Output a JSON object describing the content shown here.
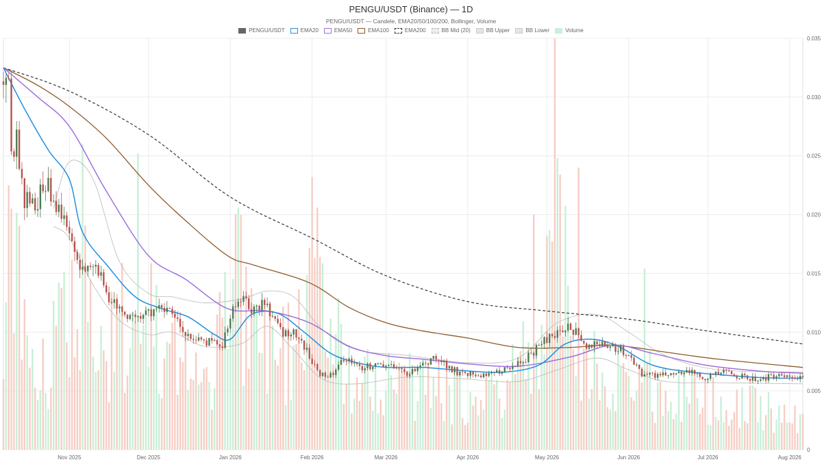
{
  "title": "PENGU/USDT (Binance) — 1D",
  "subtitle": "PENGU/USDT — Candele, EMA20/50/100/200, Bollinger, Volume",
  "legend": [
    {
      "label": "PENGU/USDT",
      "color": "#666666",
      "fill": "#666666",
      "style": "solid"
    },
    {
      "label": "EMA20",
      "color": "#1f8fe0",
      "fill": "#ffffff",
      "style": "solid"
    },
    {
      "label": "EMA50",
      "color": "#a070e0",
      "fill": "#ffffff",
      "style": "solid"
    },
    {
      "label": "EMA100",
      "color": "#8b5a2b",
      "fill": "#ffffff",
      "style": "solid"
    },
    {
      "label": "EMA200",
      "color": "#333333",
      "fill": "#ffffff",
      "style": "dashed"
    },
    {
      "label": "BB Mid (20)",
      "color": "#bbbbbb",
      "fill": "#eeeeee",
      "style": "dashed"
    },
    {
      "label": "BB Upper",
      "color": "#cccccc",
      "fill": "#e4e4e4",
      "style": "solid"
    },
    {
      "label": "BB Lower",
      "color": "#cccccc",
      "fill": "#e4e4e4",
      "style": "solid"
    },
    {
      "label": "Volume",
      "color": "#c8f0d8",
      "fill": "#c8f0d8",
      "style": "solid"
    }
  ],
  "colors": {
    "up": "#4a7a52",
    "down": "#b5534a",
    "vol_up": "#c8efd6",
    "vol_down": "#f6cdc4",
    "ema20": "#1f8fe0",
    "ema50": "#a070e0",
    "ema100": "#8b5a2b",
    "ema200": "#333333",
    "bb": "#b8b8b8",
    "grid": "#ececec"
  },
  "chart_data": {
    "type": "candlestick",
    "symbol": "PENGU/USDT",
    "exchange": "Binance",
    "interval": "1D",
    "x_range": [
      "2025-10-07",
      "2026-08-06"
    ],
    "ylim": [
      0,
      0.035
    ],
    "y_ticks": [
      {
        "value": 0,
        "label": "0"
      },
      {
        "value": 0.005,
        "label": "0.005"
      },
      {
        "value": 0.01,
        "label": "0.010"
      },
      {
        "value": 0.015,
        "label": "0.015"
      },
      {
        "value": 0.02,
        "label": "0.020"
      },
      {
        "value": 0.025,
        "label": "0.025"
      },
      {
        "value": 0.03,
        "label": "0.030"
      },
      {
        "value": 0.035,
        "label": "0.035"
      }
    ],
    "x_ticks": [
      {
        "date": "2025-11-01",
        "label": "Nov 2025"
      },
      {
        "date": "2025-12-01",
        "label": "Dec 2025"
      },
      {
        "date": "2026-01-01",
        "label": "Jan 2026"
      },
      {
        "date": "2026-02-01",
        "label": "Feb 2026"
      },
      {
        "date": "2026-03-01",
        "label": "Mar 2026"
      },
      {
        "date": "2026-04-01",
        "label": "Apr 2026"
      },
      {
        "date": "2026-05-01",
        "label": "May 2026"
      },
      {
        "date": "2026-06-01",
        "label": "Jun 2026"
      },
      {
        "date": "2026-07-01",
        "label": "Jul 2026"
      },
      {
        "date": "2026-08-01",
        "label": "Aug 2026"
      }
    ],
    "close_path": [
      [
        "2025-10-07",
        0.0325
      ],
      [
        "2025-10-09",
        0.0315
      ],
      [
        "2025-10-10",
        0.0245
      ],
      [
        "2025-10-12",
        0.0265
      ],
      [
        "2025-10-15",
        0.0215
      ],
      [
        "2025-10-19",
        0.021
      ],
      [
        "2025-10-24",
        0.0225
      ],
      [
        "2025-10-27",
        0.0205
      ],
      [
        "2025-11-01",
        0.0185
      ],
      [
        "2025-11-05",
        0.0155
      ],
      [
        "2025-11-10",
        0.016
      ],
      [
        "2025-11-16",
        0.013
      ],
      [
        "2025-11-22",
        0.011
      ],
      [
        "2025-11-28",
        0.0115
      ],
      [
        "2025-12-04",
        0.012
      ],
      [
        "2025-12-10",
        0.0115
      ],
      [
        "2025-12-16",
        0.0095
      ],
      [
        "2025-12-22",
        0.0092
      ],
      [
        "2025-12-29",
        0.009
      ],
      [
        "2026-01-02",
        0.012
      ],
      [
        "2026-01-05",
        0.013
      ],
      [
        "2026-01-09",
        0.0118
      ],
      [
        "2026-01-14",
        0.0125
      ],
      [
        "2026-01-20",
        0.01
      ],
      [
        "2026-01-26",
        0.0098
      ],
      [
        "2026-01-31",
        0.008
      ],
      [
        "2026-02-03",
        0.0065
      ],
      [
        "2026-02-09",
        0.0062
      ],
      [
        "2026-02-12",
        0.0078
      ],
      [
        "2026-02-20",
        0.007
      ],
      [
        "2026-03-01",
        0.0072
      ],
      [
        "2026-03-10",
        0.0065
      ],
      [
        "2026-03-19",
        0.0078
      ],
      [
        "2026-03-28",
        0.0066
      ],
      [
        "2026-04-06",
        0.0064
      ],
      [
        "2026-04-14",
        0.0068
      ],
      [
        "2026-04-22",
        0.0075
      ],
      [
        "2026-04-29",
        0.009
      ],
      [
        "2026-05-05",
        0.01
      ],
      [
        "2026-05-09",
        0.0108
      ],
      [
        "2026-05-16",
        0.0088
      ],
      [
        "2026-05-23",
        0.0092
      ],
      [
        "2026-05-31",
        0.0082
      ],
      [
        "2026-06-06",
        0.0065
      ],
      [
        "2026-06-14",
        0.0063
      ],
      [
        "2026-06-22",
        0.0068
      ],
      [
        "2026-06-30",
        0.0062
      ],
      [
        "2026-07-08",
        0.0066
      ],
      [
        "2026-07-17",
        0.006
      ],
      [
        "2026-07-26",
        0.0062
      ],
      [
        "2026-08-06",
        0.006
      ]
    ],
    "ema20": [
      [
        "2025-10-07",
        0.0325
      ],
      [
        "2025-10-15",
        0.029
      ],
      [
        "2025-10-24",
        0.0255
      ],
      [
        "2025-11-01",
        0.023
      ],
      [
        "2025-11-06",
        0.0185
      ],
      [
        "2025-11-16",
        0.0155
      ],
      [
        "2025-11-26",
        0.013
      ],
      [
        "2025-12-06",
        0.012
      ],
      [
        "2025-12-16",
        0.0113
      ],
      [
        "2025-12-26",
        0.0098
      ],
      [
        "2026-01-01",
        0.0094
      ],
      [
        "2026-01-09",
        0.0115
      ],
      [
        "2026-01-19",
        0.0116
      ],
      [
        "2026-01-29",
        0.01
      ],
      [
        "2026-02-08",
        0.0082
      ],
      [
        "2026-02-18",
        0.0074
      ],
      [
        "2026-03-01",
        0.007
      ],
      [
        "2026-03-15",
        0.007
      ],
      [
        "2026-04-01",
        0.0067
      ],
      [
        "2026-04-15",
        0.0066
      ],
      [
        "2026-04-28",
        0.0072
      ],
      [
        "2026-05-08",
        0.009
      ],
      [
        "2026-05-18",
        0.0094
      ],
      [
        "2026-05-28",
        0.0088
      ],
      [
        "2026-06-10",
        0.0072
      ],
      [
        "2026-06-25",
        0.0066
      ],
      [
        "2026-07-10",
        0.0063
      ],
      [
        "2026-07-25",
        0.0061
      ],
      [
        "2026-08-06",
        0.0061
      ]
    ],
    "ema50": [
      [
        "2025-10-07",
        0.0325
      ],
      [
        "2025-10-20",
        0.03
      ],
      [
        "2025-11-01",
        0.0275
      ],
      [
        "2025-11-15",
        0.022
      ],
      [
        "2025-12-01",
        0.0165
      ],
      [
        "2025-12-15",
        0.0145
      ],
      [
        "2025-12-31",
        0.012
      ],
      [
        "2026-01-15",
        0.0118
      ],
      [
        "2026-01-31",
        0.0108
      ],
      [
        "2026-02-15",
        0.0088
      ],
      [
        "2026-03-01",
        0.008
      ],
      [
        "2026-03-15",
        0.0077
      ],
      [
        "2026-04-01",
        0.0073
      ],
      [
        "2026-04-20",
        0.0071
      ],
      [
        "2026-05-10",
        0.0079
      ],
      [
        "2026-05-26",
        0.0089
      ],
      [
        "2026-06-10",
        0.0082
      ],
      [
        "2026-06-30",
        0.0072
      ],
      [
        "2026-07-20",
        0.0067
      ],
      [
        "2026-08-06",
        0.0065
      ]
    ],
    "ema100": [
      [
        "2025-10-07",
        0.0325
      ],
      [
        "2025-10-20",
        0.031
      ],
      [
        "2025-11-01",
        0.0292
      ],
      [
        "2025-11-15",
        0.0265
      ],
      [
        "2025-12-01",
        0.0225
      ],
      [
        "2025-12-15",
        0.0195
      ],
      [
        "2025-12-31",
        0.0165
      ],
      [
        "2026-01-10",
        0.0157
      ],
      [
        "2026-01-31",
        0.0142
      ],
      [
        "2026-02-15",
        0.0121
      ],
      [
        "2026-03-01",
        0.0108
      ],
      [
        "2026-03-15",
        0.0101
      ],
      [
        "2026-04-01",
        0.0095
      ],
      [
        "2026-04-20",
        0.0087
      ],
      [
        "2026-05-10",
        0.0087
      ],
      [
        "2026-05-26",
        0.0089
      ],
      [
        "2026-06-15",
        0.0083
      ],
      [
        "2026-07-05",
        0.0077
      ],
      [
        "2026-08-06",
        0.007
      ]
    ],
    "ema200": [
      [
        "2025-10-07",
        0.0325
      ],
      [
        "2025-11-01",
        0.0305
      ],
      [
        "2025-12-01",
        0.0268
      ],
      [
        "2026-01-01",
        0.0215
      ],
      [
        "2026-02-01",
        0.018
      ],
      [
        "2026-03-01",
        0.0148
      ],
      [
        "2026-04-01",
        0.0126
      ],
      [
        "2026-05-01",
        0.0118
      ],
      [
        "2026-06-01",
        0.0111
      ],
      [
        "2026-07-01",
        0.0101
      ],
      [
        "2026-08-06",
        0.009
      ]
    ],
    "bb_upper": [
      [
        "2025-10-26",
        0.0205
      ],
      [
        "2025-11-01",
        0.0245
      ],
      [
        "2025-11-10",
        0.023
      ],
      [
        "2025-11-20",
        0.016
      ],
      [
        "2025-12-01",
        0.0133
      ],
      [
        "2025-12-10",
        0.013
      ],
      [
        "2025-12-22",
        0.0125
      ],
      [
        "2026-01-05",
        0.0128
      ],
      [
        "2026-01-15",
        0.0135
      ],
      [
        "2026-01-25",
        0.013
      ],
      [
        "2026-02-05",
        0.0102
      ],
      [
        "2026-02-18",
        0.0085
      ],
      [
        "2026-03-10",
        0.008
      ],
      [
        "2026-04-01",
        0.0074
      ],
      [
        "2026-04-20",
        0.0078
      ],
      [
        "2026-05-05",
        0.0108
      ],
      [
        "2026-05-20",
        0.0115
      ],
      [
        "2026-06-01",
        0.01
      ],
      [
        "2026-06-15",
        0.008
      ],
      [
        "2026-07-05",
        0.0068
      ],
      [
        "2026-08-06",
        0.0066
      ]
    ],
    "bb_lower": [
      [
        "2025-10-26",
        0.019
      ],
      [
        "2025-11-01",
        0.018
      ],
      [
        "2025-11-10",
        0.014
      ],
      [
        "2025-11-20",
        0.011
      ],
      [
        "2025-12-01",
        0.0098
      ],
      [
        "2025-12-10",
        0.01
      ],
      [
        "2025-12-22",
        0.0088
      ],
      [
        "2026-01-05",
        0.009
      ],
      [
        "2026-01-15",
        0.0105
      ],
      [
        "2026-01-25",
        0.0085
      ],
      [
        "2026-02-05",
        0.006
      ],
      [
        "2026-02-18",
        0.0056
      ],
      [
        "2026-03-10",
        0.0062
      ],
      [
        "2026-04-01",
        0.006
      ],
      [
        "2026-04-20",
        0.0058
      ],
      [
        "2026-05-05",
        0.0068
      ],
      [
        "2026-05-20",
        0.0078
      ],
      [
        "2026-06-01",
        0.0068
      ],
      [
        "2026-06-15",
        0.0058
      ],
      [
        "2026-07-05",
        0.0057
      ],
      [
        "2026-08-06",
        0.0056
      ]
    ],
    "volume_profile": [
      [
        "2025-10-07",
        0.01
      ],
      [
        "2025-10-10",
        0.025
      ],
      [
        "2025-10-15",
        0.0105
      ],
      [
        "2025-10-25",
        0.009
      ],
      [
        "2025-11-05",
        0.0185
      ],
      [
        "2025-11-15",
        0.011
      ],
      [
        "2025-11-27",
        0.0135
      ],
      [
        "2025-12-10",
        0.011
      ],
      [
        "2025-12-25",
        0.0095
      ],
      [
        "2026-01-02",
        0.0175
      ],
      [
        "2026-01-12",
        0.012
      ],
      [
        "2026-01-25",
        0.01
      ],
      [
        "2026-02-02",
        0.015
      ],
      [
        "2026-02-15",
        0.008
      ],
      [
        "2026-03-05",
        0.0065
      ],
      [
        "2026-03-20",
        0.006
      ],
      [
        "2026-04-10",
        0.0055
      ],
      [
        "2026-04-26",
        0.0095
      ],
      [
        "2026-05-04",
        0.02
      ],
      [
        "2026-05-12",
        0.012
      ],
      [
        "2026-05-26",
        0.0085
      ],
      [
        "2026-06-05",
        0.007
      ],
      [
        "2026-06-20",
        0.0055
      ],
      [
        "2026-07-10",
        0.0045
      ],
      [
        "2026-08-06",
        0.0035
      ]
    ],
    "volume_spikes": [
      [
        "2025-10-10",
        0.0205
      ],
      [
        "2025-11-06",
        0.026
      ],
      [
        "2025-11-27",
        0.0252
      ],
      [
        "2026-01-04",
        0.0206
      ],
      [
        "2026-02-01",
        0.0232
      ],
      [
        "2026-02-03",
        0.0206
      ],
      [
        "2026-04-26",
        0.02
      ],
      [
        "2026-05-04",
        0.035
      ],
      [
        "2026-05-05",
        0.0248
      ],
      [
        "2026-05-06",
        0.0234
      ],
      [
        "2026-05-13",
        0.024
      ],
      [
        "2026-06-07",
        0.0154
      ]
    ]
  }
}
